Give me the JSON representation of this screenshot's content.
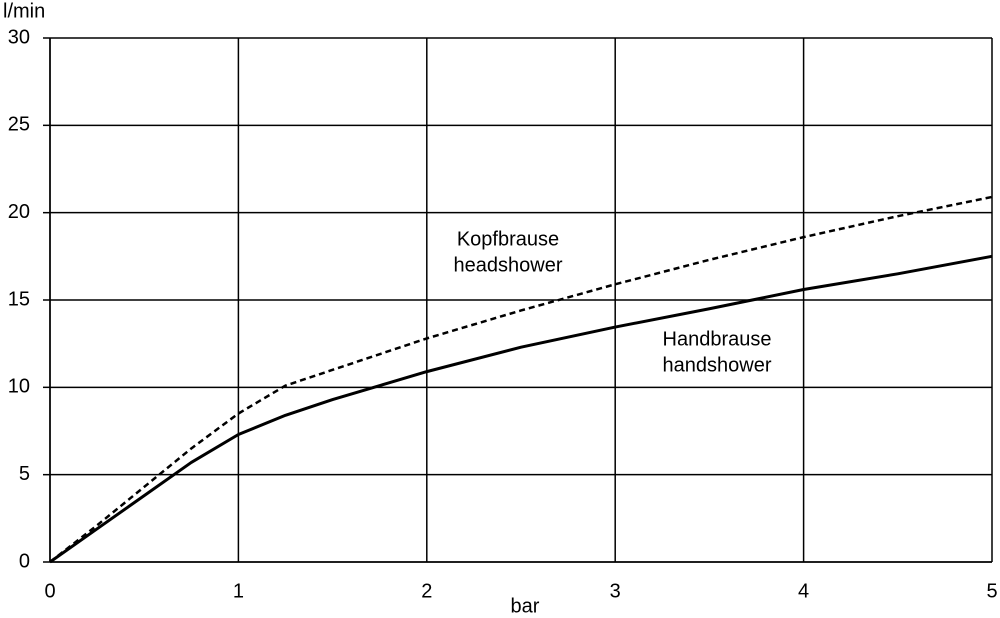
{
  "chart_data": {
    "type": "line",
    "x_label": "bar",
    "y_label": "l/min",
    "x": [
      0,
      0.25,
      0.5,
      0.75,
      1,
      1.25,
      1.5,
      2,
      2.5,
      3,
      3.5,
      4,
      4.5,
      5
    ],
    "series": [
      {
        "name": "headshower",
        "color": "#000000",
        "dashed": true,
        "values": [
          0,
          2.1,
          4.3,
          6.5,
          8.5,
          10.1,
          11.0,
          12.8,
          14.4,
          15.9,
          17.3,
          18.6,
          19.8,
          20.9
        ]
      },
      {
        "name": "handshower",
        "color": "#000000",
        "dashed": false,
        "values": [
          0,
          1.9,
          3.8,
          5.7,
          7.3,
          8.4,
          9.3,
          10.9,
          12.3,
          13.45,
          14.5,
          15.6,
          16.5,
          17.5
        ]
      }
    ],
    "annotations": [
      [
        "Kopfbrause",
        "headshower"
      ],
      [
        "Handbrause",
        "handshower"
      ]
    ],
    "xlim": [
      0,
      5
    ],
    "ylim": [
      0,
      30
    ],
    "xticks": [
      0,
      1,
      2,
      3,
      4,
      5
    ],
    "yticks": [
      0,
      5,
      10,
      15,
      20,
      25,
      30
    ],
    "grid": true
  }
}
